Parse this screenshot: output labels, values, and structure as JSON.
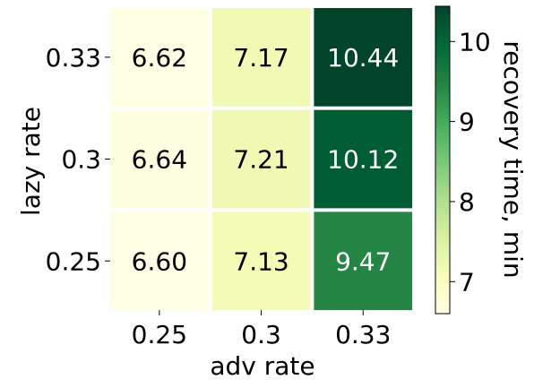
{
  "chart_data": {
    "type": "heatmap",
    "title": "",
    "xlabel": "adv rate",
    "ylabel": "lazy rate",
    "x_categories": [
      "0.25",
      "0.3",
      "0.33"
    ],
    "y_categories": [
      "0.33",
      "0.3",
      "0.25"
    ],
    "values": [
      [
        6.62,
        7.17,
        10.44
      ],
      [
        6.64,
        7.21,
        10.12
      ],
      [
        6.6,
        7.13,
        9.47
      ]
    ],
    "cell_labels": [
      [
        "6.62",
        "7.17",
        "10.44"
      ],
      [
        "6.64",
        "7.21",
        "10.12"
      ],
      [
        "6.60",
        "7.13",
        "9.47"
      ]
    ],
    "colorbar": {
      "label": "recovery time, min",
      "range": [
        6.6,
        10.44
      ],
      "ticks": [
        7,
        8,
        9,
        10
      ],
      "tick_labels": [
        "7",
        "8",
        "9",
        "10"
      ],
      "colormap": "YlGn",
      "colors": [
        "#ffffe5",
        "#f7fcb9",
        "#d9f0a3",
        "#addd8e",
        "#78c679",
        "#41ab5d",
        "#238443",
        "#006837",
        "#004529"
      ]
    },
    "grid": false
  }
}
